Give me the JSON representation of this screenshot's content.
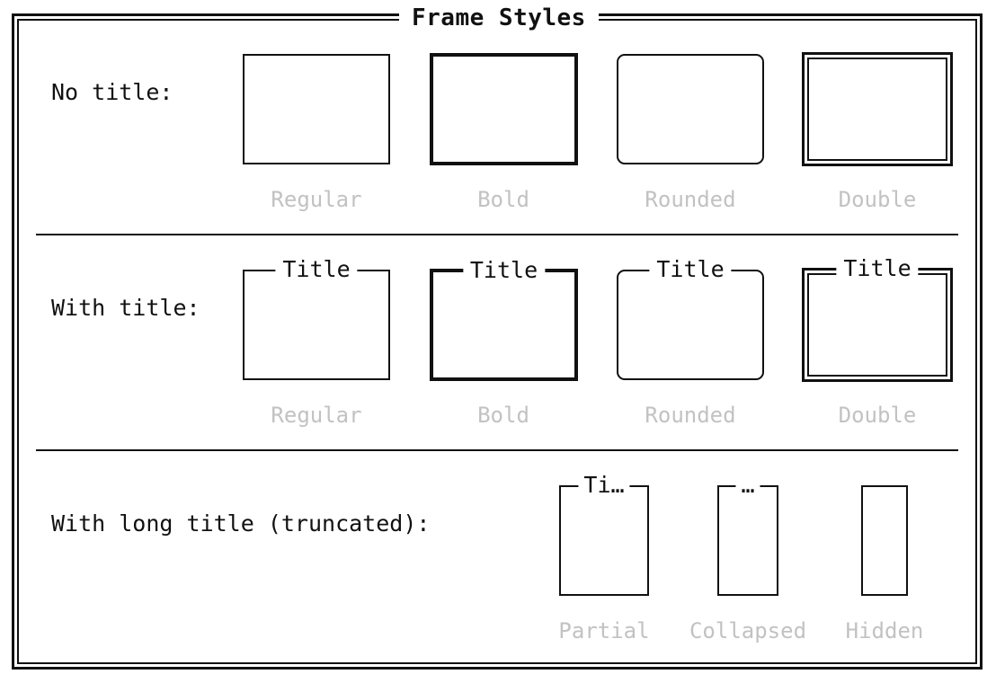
{
  "header": {
    "title": "Frame Styles"
  },
  "rows": [
    {
      "label": "No title:",
      "frames": [
        {
          "style": "regular",
          "title": "",
          "caption": "Regular"
        },
        {
          "style": "bold",
          "title": "",
          "caption": "Bold"
        },
        {
          "style": "rounded",
          "title": "",
          "caption": "Rounded"
        },
        {
          "style": "double",
          "title": "",
          "caption": "Double"
        }
      ]
    },
    {
      "label": "With title:",
      "frames": [
        {
          "style": "regular",
          "title": "Title",
          "caption": "Regular"
        },
        {
          "style": "bold",
          "title": "Title",
          "caption": "Bold"
        },
        {
          "style": "rounded",
          "title": "Title",
          "caption": "Rounded"
        },
        {
          "style": "double",
          "title": "Title",
          "caption": "Double"
        }
      ]
    },
    {
      "label": "With long title (truncated):",
      "frames": [
        {
          "style": "regular",
          "title": "Ti…",
          "caption": "Partial"
        },
        {
          "style": "regular",
          "title": "…",
          "caption": "Collapsed"
        },
        {
          "style": "regular",
          "title": "",
          "caption": "Hidden"
        }
      ]
    }
  ],
  "colors": {
    "border": "#111111",
    "caption": "#c2c2c2",
    "background": "#ffffff"
  }
}
